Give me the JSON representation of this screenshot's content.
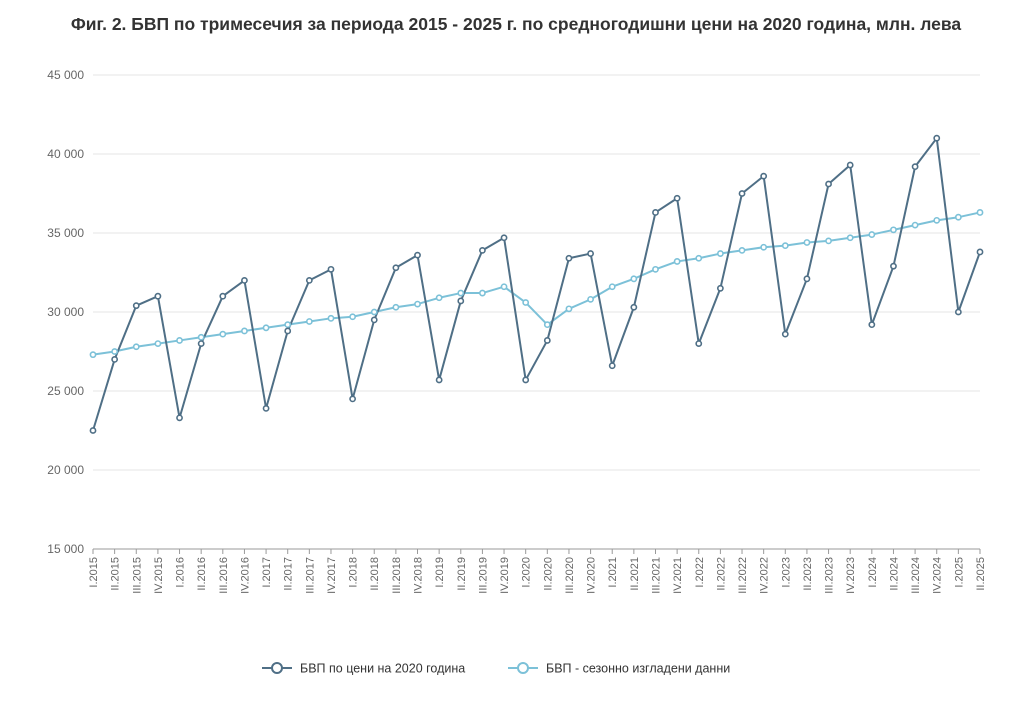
{
  "chart_data": {
    "type": "line",
    "title": "Фиг. 2. БВП по тримесечия за периода 2015 - 2025 г. по средногодишни цени на 2020 година, млн. лева",
    "xlabel": "",
    "ylabel": "",
    "ylim": [
      15000,
      45000
    ],
    "yticks": [
      15000,
      20000,
      25000,
      30000,
      35000,
      40000,
      45000
    ],
    "ytick_labels": [
      "15 000",
      "20 000",
      "25 000",
      "30 000",
      "35 000",
      "40 000",
      "45 000"
    ],
    "grid": true,
    "legend_position": "bottom",
    "categories": [
      "I.2015",
      "II.2015",
      "III.2015",
      "IV.2015",
      "I.2016",
      "II.2016",
      "III.2016",
      "IV.2016",
      "I.2017",
      "II.2017",
      "III.2017",
      "IV.2017",
      "I.2018",
      "II.2018",
      "III.2018",
      "IV.2018",
      "I.2019",
      "II.2019",
      "III.2019",
      "IV.2019",
      "I.2020",
      "II.2020",
      "III.2020",
      "IV.2020",
      "I.2021",
      "II.2021",
      "III.2021",
      "IV.2021",
      "I.2022",
      "II.2022",
      "III.2022",
      "IV.2022",
      "I.2023",
      "II.2023",
      "III.2023",
      "IV.2023",
      "I.2024",
      "II.2024",
      "III.2024",
      "IV.2024",
      "I.2025",
      "II.2025"
    ],
    "series": [
      {
        "name": "БВП  по цени на 2020 година",
        "color": "#4f6f86",
        "values": [
          22500,
          27000,
          30400,
          31000,
          23300,
          28000,
          31000,
          32000,
          23900,
          28800,
          32000,
          32700,
          24500,
          29500,
          32800,
          33600,
          25700,
          30700,
          33900,
          34700,
          25700,
          28200,
          33400,
          33700,
          26600,
          30300,
          36300,
          37200,
          28000,
          31500,
          37500,
          38600,
          28600,
          32100,
          38100,
          39300,
          29200,
          32900,
          39200,
          41000,
          30000,
          33800
        ]
      },
      {
        "name": "БВП - сезонно изгладени данни",
        "color": "#7cc1d8",
        "values": [
          27300,
          27500,
          27800,
          28000,
          28200,
          28400,
          28600,
          28800,
          29000,
          29200,
          29400,
          29600,
          29700,
          30000,
          30300,
          30500,
          30900,
          31200,
          31200,
          31600,
          30600,
          29200,
          30200,
          30800,
          31600,
          32100,
          32700,
          33200,
          33400,
          33700,
          33900,
          34100,
          34200,
          34400,
          34500,
          34700,
          34900,
          35200,
          35500,
          35800,
          36000,
          36300
        ]
      }
    ]
  }
}
